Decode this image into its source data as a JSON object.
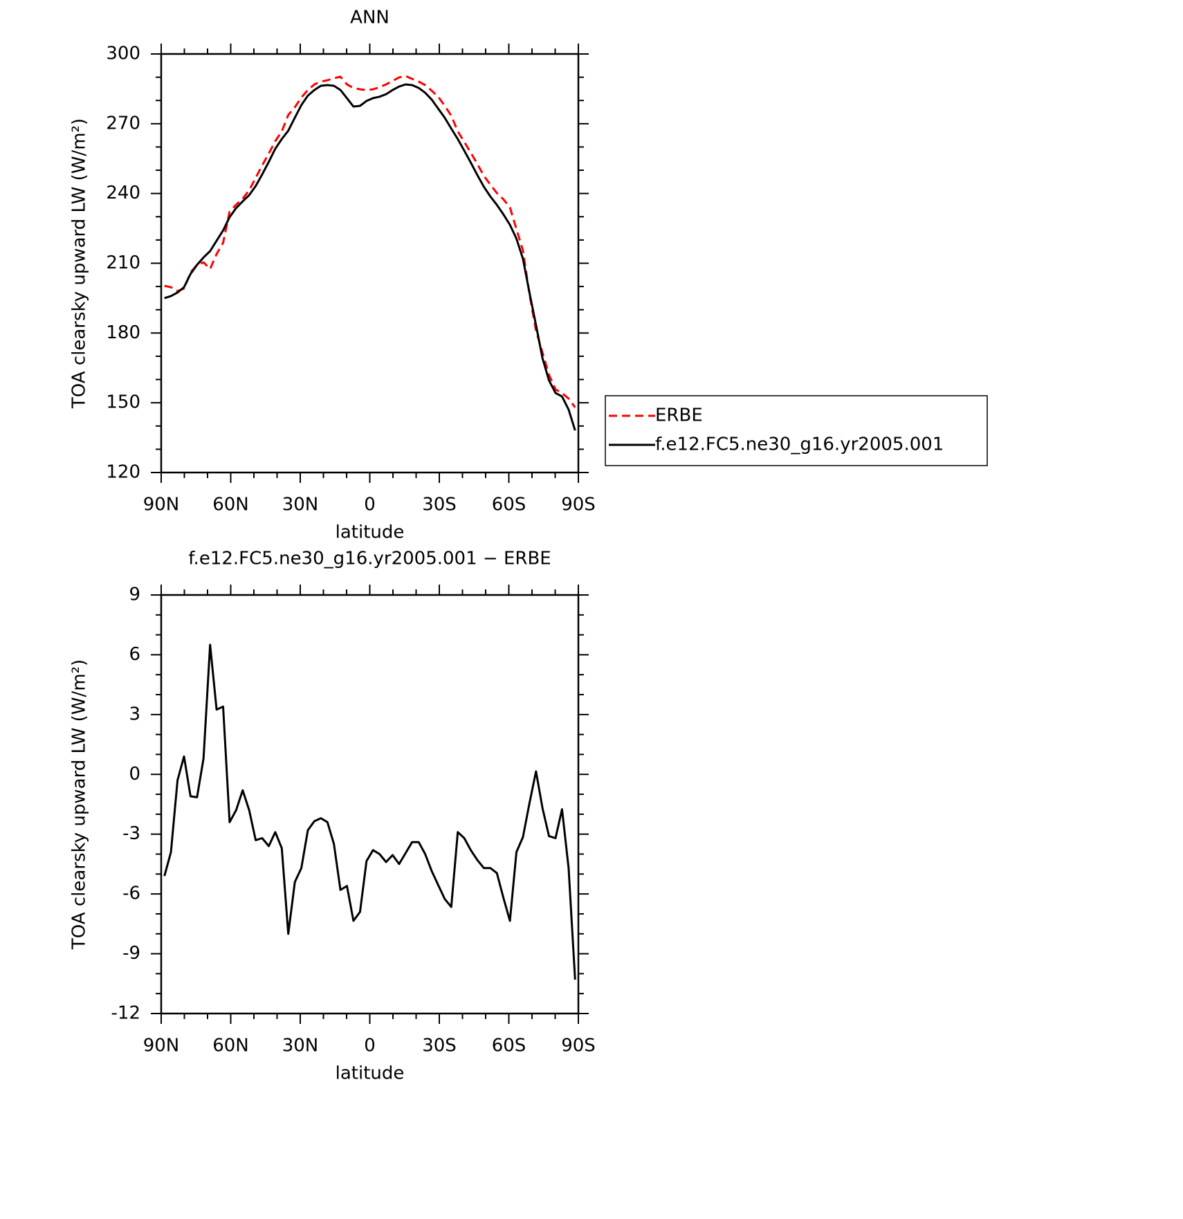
{
  "chart_data": [
    {
      "type": "line",
      "title": "ANN",
      "xlabel": "latitude",
      "ylabel": "TOA clearsky upward LW (W/m²)",
      "x": [
        88.59,
        85.78,
        82.97,
        80.16,
        77.34,
        74.53,
        71.72,
        68.91,
        66.09,
        63.28,
        60.47,
        57.66,
        54.84,
        52.03,
        49.22,
        46.41,
        43.59,
        40.78,
        37.97,
        35.16,
        32.34,
        29.53,
        26.72,
        23.91,
        21.09,
        18.28,
        15.47,
        12.66,
        9.84,
        7.03,
        4.22,
        1.41,
        -1.41,
        -4.22,
        -7.03,
        -9.84,
        -12.66,
        -15.47,
        -18.28,
        -21.09,
        -23.91,
        -26.72,
        -29.53,
        -32.34,
        -35.16,
        -37.97,
        -40.78,
        -43.59,
        -46.41,
        -49.22,
        -52.03,
        -54.84,
        -57.66,
        -60.47,
        -63.28,
        -66.09,
        -68.91,
        -71.72,
        -74.53,
        -77.34,
        -80.16,
        -82.97,
        -85.78,
        -88.59
      ],
      "series": [
        {
          "name": "ERBE",
          "color": "#ff0000",
          "linestyle": "dashed",
          "values": [
            200.3,
            199.7,
            198.0,
            199.1,
            206.0,
            209.3,
            210.4,
            207.5,
            214.0,
            218.8,
            232.2,
            235.2,
            237.8,
            241.4,
            246.7,
            252.1,
            257.2,
            262.5,
            266.7,
            273.8,
            277.1,
            281.3,
            284.5,
            286.9,
            288.1,
            288.7,
            289.6,
            290.2,
            286.9,
            285.4,
            284.8,
            284.5,
            284.8,
            285.7,
            286.9,
            288.4,
            289.9,
            290.5,
            289.3,
            288.1,
            286.6,
            284.2,
            281.6,
            277.7,
            273.5,
            266.7,
            262.2,
            257.5,
            252.7,
            247.6,
            243.8,
            240.2,
            237.5,
            234.0,
            224.7,
            215.5,
            196.8,
            181.0,
            171.5,
            162.0,
            155.7,
            154.2,
            151.8,
            148.0
          ]
        },
        {
          "name": "f.e12.FC5.ne30_g16.yr2005.001",
          "color": "#000000",
          "linestyle": "solid",
          "values": [
            195.0,
            195.9,
            197.4,
            199.7,
            205.4,
            209.3,
            212.5,
            215.2,
            219.7,
            224.1,
            229.8,
            233.7,
            236.6,
            239.3,
            243.2,
            248.2,
            253.6,
            259.2,
            263.4,
            267.0,
            272.6,
            278.0,
            282.1,
            284.5,
            286.3,
            286.6,
            286.3,
            284.5,
            281.0,
            277.4,
            277.7,
            279.8,
            281.0,
            281.6,
            282.7,
            284.5,
            286.0,
            286.9,
            286.6,
            285.4,
            283.3,
            280.4,
            276.5,
            272.6,
            267.9,
            263.4,
            258.4,
            253.3,
            247.9,
            242.9,
            238.7,
            235.1,
            231.0,
            226.5,
            220.6,
            211.9,
            197.4,
            183.4,
            169.1,
            159.6,
            154.2,
            152.7,
            147.1,
            138.1
          ]
        }
      ],
      "xlim": [
        90,
        -90
      ],
      "xticks": [
        {
          "value": 90,
          "label": "90N"
        },
        {
          "value": 60,
          "label": "60N"
        },
        {
          "value": 30,
          "label": "30N"
        },
        0,
        {
          "value": -30,
          "label": "30S"
        },
        {
          "value": -60,
          "label": "60S"
        },
        {
          "value": -90,
          "label": "90S"
        }
      ],
      "ylim": [
        120,
        300
      ],
      "yticks": [
        120,
        150,
        180,
        210,
        240,
        270,
        300
      ],
      "legend": "right"
    },
    {
      "type": "line",
      "title": "f.e12.FC5.ne30_g16.yr2005.001 − ERBE",
      "xlabel": "latitude",
      "ylabel": "TOA clearsky upward LW (W/m²)",
      "x": [
        88.59,
        85.78,
        82.97,
        80.16,
        77.34,
        74.53,
        71.72,
        68.91,
        66.09,
        63.28,
        60.47,
        57.66,
        54.84,
        52.03,
        49.22,
        46.41,
        43.59,
        40.78,
        37.97,
        35.16,
        32.34,
        29.53,
        26.72,
        23.91,
        21.09,
        18.28,
        15.47,
        12.66,
        9.84,
        7.03,
        4.22,
        1.41,
        -1.41,
        -4.22,
        -7.03,
        -9.84,
        -12.66,
        -15.47,
        -18.28,
        -21.09,
        -23.91,
        -26.72,
        -29.53,
        -32.34,
        -35.16,
        -37.97,
        -40.78,
        -43.59,
        -46.41,
        -49.22,
        -52.03,
        -54.84,
        -57.66,
        -60.47,
        -63.28,
        -66.09,
        -68.91,
        -71.72,
        -74.53,
        -77.34,
        -80.16,
        -82.97,
        -85.78,
        -88.59
      ],
      "color": "#000000",
      "values": [
        -5.1,
        -3.9,
        -0.3,
        0.9,
        -1.1,
        -1.15,
        0.8,
        6.5,
        3.25,
        3.4,
        -2.4,
        -1.8,
        -0.8,
        -1.8,
        -3.3,
        -3.2,
        -3.6,
        -2.9,
        -3.7,
        -8.0,
        -5.4,
        -4.7,
        -2.8,
        -2.35,
        -2.2,
        -2.4,
        -3.5,
        -5.8,
        -5.6,
        -7.35,
        -6.9,
        -4.35,
        -3.8,
        -4.0,
        -4.4,
        -4.05,
        -4.5,
        -3.95,
        -3.4,
        -3.4,
        -4.0,
        -4.85,
        -5.55,
        -6.25,
        -6.65,
        -2.9,
        -3.2,
        -3.8,
        -4.3,
        -4.7,
        -4.7,
        -4.95,
        -6.2,
        -7.35,
        -3.9,
        -3.15,
        -1.45,
        0.15,
        -1.7,
        -3.1,
        -3.2,
        -1.75,
        -4.7,
        -10.3
      ],
      "xlim": [
        90,
        -90
      ],
      "xticks": [
        {
          "value": 90,
          "label": "90N"
        },
        {
          "value": 60,
          "label": "60N"
        },
        {
          "value": 30,
          "label": "30N"
        },
        0,
        {
          "value": -30,
          "label": "30S"
        },
        {
          "value": -60,
          "label": "60S"
        },
        {
          "value": -90,
          "label": "90S"
        }
      ],
      "ylim": [
        -12,
        9
      ],
      "yticks": [
        -12,
        -9,
        -6,
        -3,
        0,
        3,
        6,
        9
      ]
    }
  ]
}
